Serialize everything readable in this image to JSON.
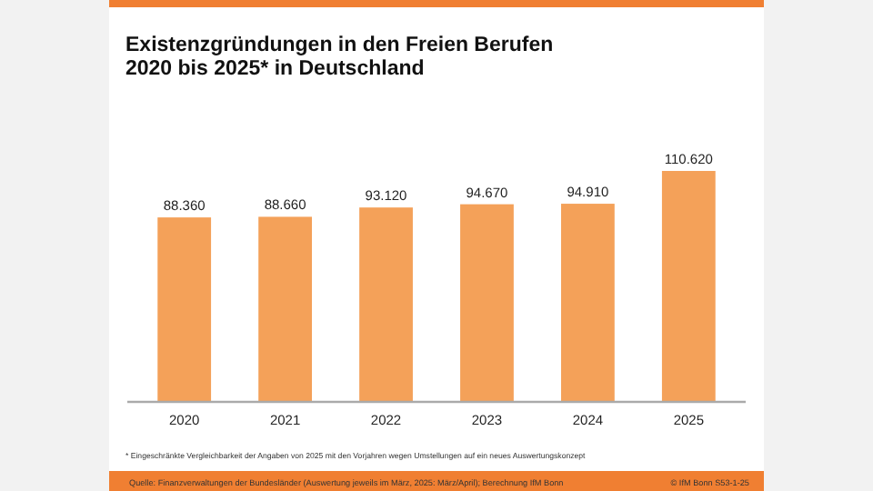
{
  "chart_data": {
    "type": "bar",
    "title": "Existenzgründungen in den Freien Berufen\n2020 bis 2025* in Deutschland",
    "categories": [
      "2020",
      "2021",
      "2022",
      "2023",
      "2024",
      "2025"
    ],
    "values": [
      88360,
      88660,
      93120,
      94670,
      94910,
      110620
    ],
    "value_labels": [
      "88.360",
      "88.660",
      "93.120",
      "94.670",
      "94.910",
      "110.620"
    ],
    "color": "#f4a159",
    "grid": false,
    "annotations": [
      "* Eingeschränkte Vergleichbarkeit der Angaben von 2025 mit den Vorjahren wegen Umstellungen auf ein neues Auswertungskonzept",
      "Quelle: Finanzverwaltungen der Bundesländer (Auswertung jeweils im März, 2025: März/April); Berechnung IfM Bonn",
      "© IfM Bonn  S53-1-25"
    ]
  }
}
